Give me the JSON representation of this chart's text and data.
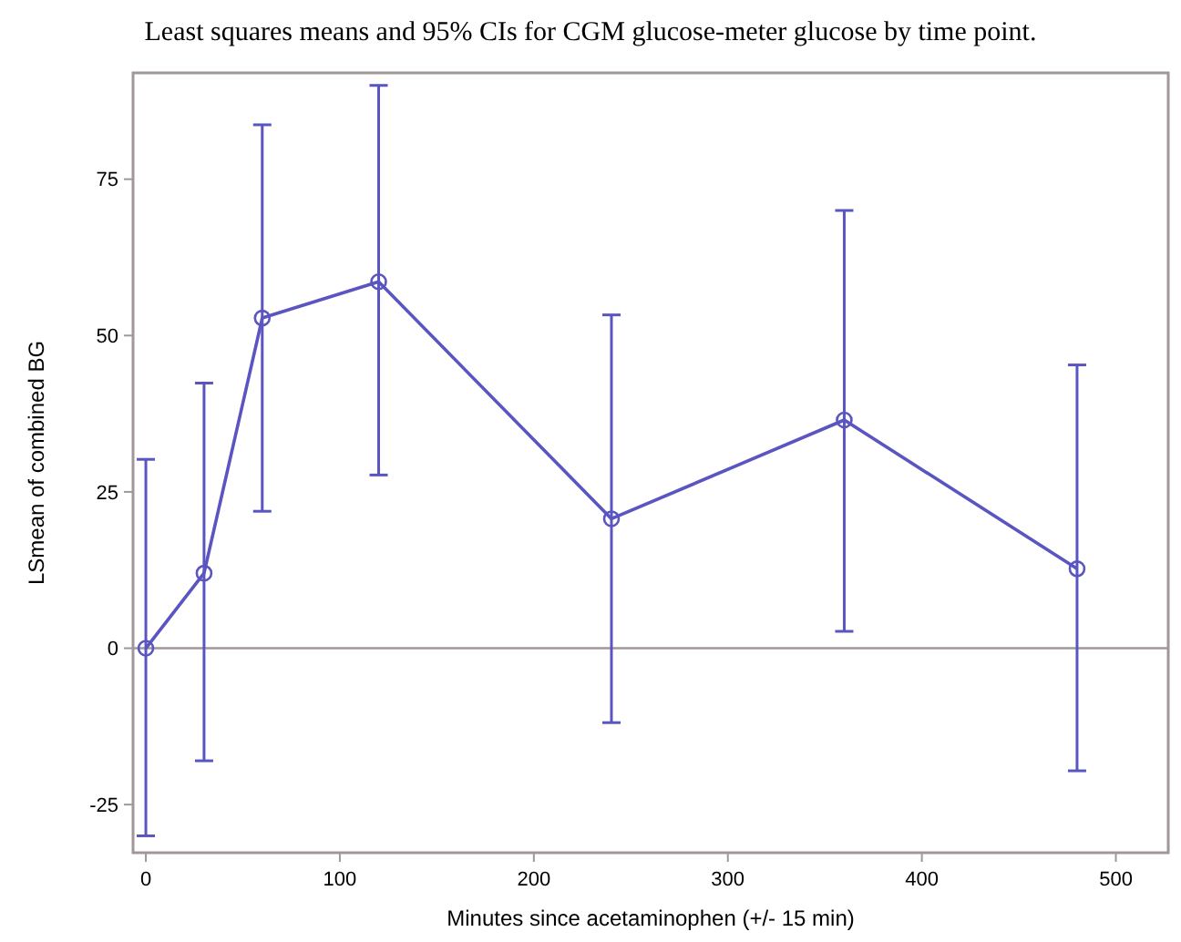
{
  "chart_data": {
    "type": "line",
    "title": "Least squares means and 95% CIs for CGM glucose-meter glucose by time point.",
    "xlabel": "Minutes since acetaminophen (+/- 15 min)",
    "ylabel": "LSmean of combined BG",
    "x": [
      0,
      30,
      60,
      120,
      240,
      360,
      480
    ],
    "series": [
      {
        "color": "#5a55c0",
        "values": [
          0,
          12,
          52.8,
          58.6,
          20.7,
          36.5,
          12.7
        ],
        "errors": [
          [
            -30,
            30.2
          ],
          [
            -18,
            42.4
          ],
          [
            21.9,
            83.7
          ],
          [
            27.7,
            90
          ],
          [
            -11.9,
            53.3
          ],
          [
            2.7,
            70
          ],
          [
            -19.6,
            45.3
          ]
        ]
      }
    ],
    "xlim": [
      -6.6,
      527
    ],
    "ylim": [
      -32.7,
      92
    ],
    "xticks": [
      0,
      100,
      200,
      300,
      400,
      500
    ],
    "yticks": [
      -25,
      0,
      25,
      50,
      75
    ],
    "ref_lines": [
      {
        "axis": "y",
        "value": 0,
        "color": "#a09898"
      }
    ],
    "marker": "circle",
    "line_style": "solid",
    "grid": false
  }
}
